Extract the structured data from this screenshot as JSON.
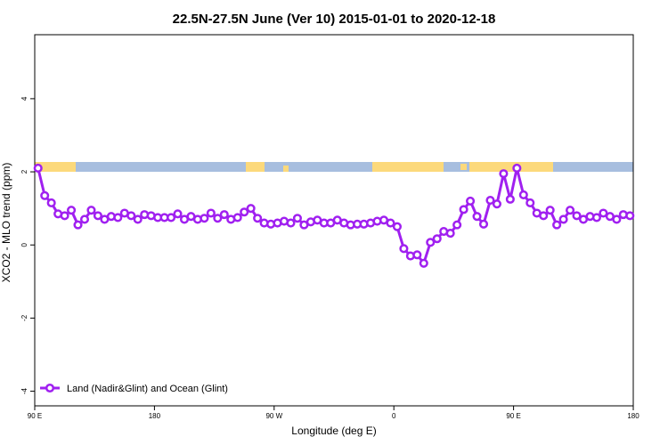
{
  "chart_data": {
    "type": "line",
    "title": "22.5N-27.5N June (Ver 10)   2015-01-01 to 2020-12-18",
    "x_label": "Longitude (deg E)",
    "y_label": "XCO2 - MLO trend (ppm)",
    "xlim": [
      90,
      540
    ],
    "ylim": [
      -4.4,
      5.75
    ],
    "xticks": [
      {
        "value": 90,
        "label": "90 E"
      },
      180,
      {
        "value": 270,
        "label": "90 W"
      },
      {
        "value": 360,
        "label": "0"
      },
      {
        "value": 450,
        "label": "90 E"
      },
      {
        "value": 540,
        "label": "180"
      }
    ],
    "yticks": [
      -4,
      -2,
      0,
      2,
      4
    ],
    "legend": "bottom-left",
    "x": [
      92.5,
      97.5,
      102.5,
      107.5,
      112.5,
      117.5,
      122.5,
      127.5,
      132.5,
      137.5,
      142.5,
      147.5,
      152.5,
      157.5,
      162.5,
      167.5,
      172.5,
      177.5,
      182.5,
      187.5,
      192.5,
      197.5,
      202.5,
      207.5,
      212.5,
      217.5,
      222.5,
      227.5,
      232.5,
      237.5,
      242.5,
      247.5,
      252.5,
      257.5,
      262.5,
      267.5,
      272.5,
      277.5,
      282.5,
      287.5,
      292.5,
      297.5,
      302.5,
      307.5,
      312.5,
      317.5,
      322.5,
      327.5,
      332.5,
      337.5,
      342.5,
      347.5,
      352.5,
      357.5,
      362.5,
      367.5,
      372.5,
      377.5,
      382.5,
      387.5,
      392.5,
      397.5,
      402.5,
      407.5,
      412.5,
      417.5,
      422.5,
      427.5,
      432.5,
      437.5,
      442.5,
      447.5,
      452.5,
      457.5,
      462.5,
      467.5,
      472.5,
      477.5,
      482.5,
      487.5,
      492.5,
      497.5,
      502.5,
      507.5,
      512.5,
      517.5,
      522.5,
      527.5,
      532.5,
      537.5
    ],
    "series": [
      {
        "name": "Land (Nadir&Glint) and Ocean (Glint)",
        "color": "#a020f0",
        "values": [
          2.1,
          1.35,
          1.15,
          0.85,
          0.8,
          0.95,
          0.55,
          0.7,
          0.95,
          0.8,
          0.7,
          0.78,
          0.75,
          0.87,
          0.8,
          0.7,
          0.83,
          0.8,
          0.75,
          0.75,
          0.75,
          0.85,
          0.7,
          0.78,
          0.7,
          0.73,
          0.87,
          0.73,
          0.83,
          0.7,
          0.75,
          0.9,
          1.0,
          0.73,
          0.6,
          0.57,
          0.6,
          0.65,
          0.6,
          0.73,
          0.55,
          0.63,
          0.68,
          0.6,
          0.6,
          0.68,
          0.6,
          0.55,
          0.57,
          0.57,
          0.6,
          0.65,
          0.68,
          0.6,
          0.5,
          -0.1,
          -0.3,
          -0.27,
          -0.5,
          0.07,
          0.17,
          0.37,
          0.32,
          0.55,
          0.97,
          1.2,
          0.78,
          0.57,
          1.22,
          1.12,
          1.95,
          1.25,
          2.1,
          1.37,
          1.15,
          0.87,
          0.8,
          0.95,
          0.55,
          0.7,
          0.95,
          0.8,
          0.7,
          0.78,
          0.75,
          0.87,
          0.78,
          0.7,
          0.83,
          0.8
        ]
      }
    ]
  }
}
